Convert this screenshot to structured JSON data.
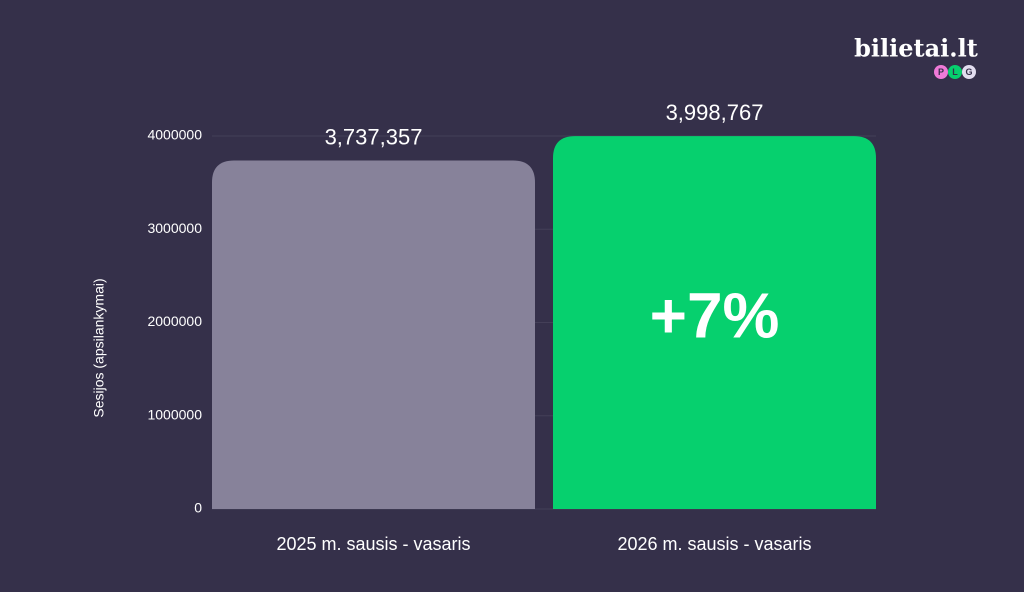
{
  "chart_data": {
    "type": "bar",
    "y_label": "Sesijos (apsilankymai)",
    "categories": [
      "2025 m. sausis - vasaris",
      "2026 m. sausis - vasaris"
    ],
    "values": [
      3737357,
      3998767
    ],
    "value_labels": [
      "3,737,357",
      "3,998,767"
    ],
    "colors": [
      "#87829a",
      "#06d06e"
    ],
    "ylim": [
      0,
      4000000
    ],
    "yticks": [
      0,
      1000000,
      2000000,
      3000000,
      4000000
    ],
    "grid": true,
    "annotation": "+7%"
  },
  "brand": {
    "name": "bilietai.lt",
    "badges": [
      "P",
      "L",
      "G"
    ]
  }
}
